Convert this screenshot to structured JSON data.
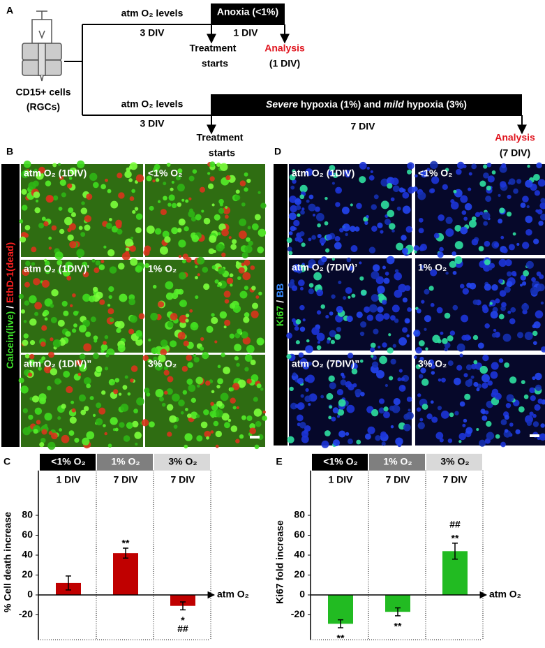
{
  "schematic": {
    "panel": "A",
    "cells": [
      "CD15+ cells",
      "(RGCs)"
    ],
    "top": {
      "condition": "atm O₂ levels",
      "duration_before": "3 DIV",
      "box": "Anoxia (<1%)",
      "duration_after": "1 DIV",
      "start": [
        "Treatment",
        "starts"
      ],
      "analysis": "Analysis",
      "analysis_time": "(1 DIV)"
    },
    "bottom": {
      "condition": "atm O₂ levels",
      "duration_before": "3 DIV",
      "box": [
        "Severe",
        " hypoxia (1%) and ",
        "mild",
        " hypoxia (3%)"
      ],
      "duration_after": "7 DIV",
      "start": [
        "Treatment",
        "starts"
      ],
      "analysis": "Analysis",
      "analysis_time": "(7 DIV)"
    }
  },
  "micrographs": [
    {
      "panel": "B",
      "stain": [
        "Calcein(live)",
        " / ",
        "EthD-1(dead)"
      ],
      "labels": [
        "atm O₂ (1DIV)",
        "<1% O₂",
        "atm O₂ (1DIV)’",
        "1% O₂",
        "atm O₂ (1DIV)”",
        "3% O₂"
      ]
    },
    {
      "panel": "D",
      "stain": [
        "Ki67",
        " / ",
        "BB"
      ],
      "labels": [
        "atm O₂ (1DIV)",
        "<1% O₂",
        "atm O₂ (7DIV)’",
        "1% O₂",
        "atm O₂ (7DIV)”",
        "3% O₂"
      ]
    }
  ],
  "chart_data": [
    {
      "type": "bar",
      "panel": "C",
      "headers": [
        "<1% O₂",
        "1% O₂",
        "3% O₂"
      ],
      "header_colors": [
        "#000000",
        "#7f7f7f",
        "#d9d9d9"
      ],
      "categories": [
        "1 DIV",
        "7 DIV",
        "7 DIV"
      ],
      "values": [
        12,
        42,
        -11
      ],
      "errors": [
        7,
        5,
        4
      ],
      "color": "#c00000",
      "significance": [
        null,
        [
          "**"
        ],
        [
          "*",
          "##"
        ]
      ],
      "ylabel": "% Cell death increase",
      "xlabel": "atm O₂",
      "ylim": [
        -45,
        125
      ],
      "yticks": [
        -20,
        0,
        20,
        40,
        60,
        80
      ]
    },
    {
      "type": "bar",
      "panel": "E",
      "headers": [
        "<1% O₂",
        "1% O₂",
        "3% O₂"
      ],
      "header_colors": [
        "#000000",
        "#7f7f7f",
        "#d9d9d9"
      ],
      "categories": [
        "1 DIV",
        "7 DIV",
        "7 DIV"
      ],
      "values": [
        -29,
        -17,
        44
      ],
      "errors": [
        4,
        4,
        8
      ],
      "color": "#22bb22",
      "significance": [
        [
          "**"
        ],
        [
          "**"
        ],
        [
          "##",
          "**"
        ]
      ],
      "ylabel": "Ki67 fold increase",
      "xlabel": "atm O₂",
      "ylim": [
        -45,
        125
      ],
      "yticks": [
        -20,
        0,
        20,
        40,
        60,
        80
      ]
    }
  ]
}
